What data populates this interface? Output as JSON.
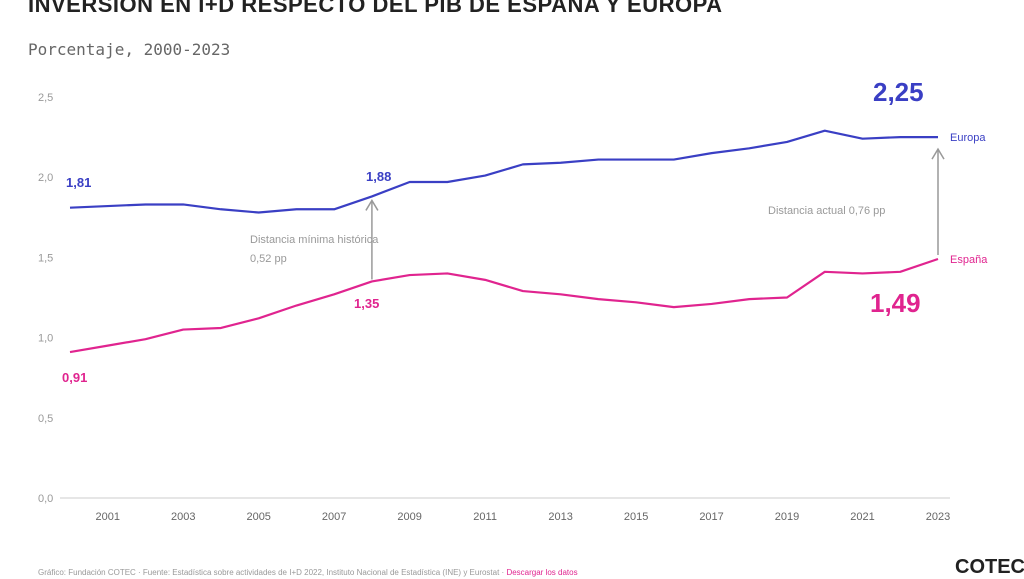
{
  "chart_data": {
    "type": "line",
    "title": "INVERSIÓN EN I+D RESPECTO DEL PIB DE ESPAÑA Y EUROPA",
    "subtitle": "Porcentaje, 2000-2023",
    "x": [
      2000,
      2001,
      2002,
      2003,
      2004,
      2005,
      2006,
      2007,
      2008,
      2009,
      2010,
      2011,
      2012,
      2013,
      2014,
      2015,
      2016,
      2017,
      2018,
      2019,
      2020,
      2021,
      2022,
      2023
    ],
    "xticks": [
      "2001",
      "2003",
      "2005",
      "2007",
      "2009",
      "2011",
      "2013",
      "2015",
      "2017",
      "2019",
      "2021",
      "2023"
    ],
    "yticks": [
      "0,0",
      "0,5",
      "1,0",
      "1,5",
      "2,0",
      "2,5"
    ],
    "ylim": [
      0,
      2.5
    ],
    "grid": false,
    "series": [
      {
        "name": "Europa",
        "color": "#3a3fc4",
        "values": [
          1.81,
          1.82,
          1.83,
          1.83,
          1.8,
          1.78,
          1.8,
          1.8,
          1.88,
          1.97,
          1.97,
          2.01,
          2.08,
          2.09,
          2.11,
          2.11,
          2.11,
          2.15,
          2.18,
          2.22,
          2.29,
          2.24,
          2.25,
          2.25
        ]
      },
      {
        "name": "España",
        "color": "#e0248f",
        "values": [
          0.91,
          0.95,
          0.99,
          1.05,
          1.06,
          1.12,
          1.2,
          1.27,
          1.35,
          1.39,
          1.4,
          1.36,
          1.29,
          1.27,
          1.24,
          1.22,
          1.19,
          1.21,
          1.24,
          1.25,
          1.41,
          1.4,
          1.41,
          1.49
        ]
      }
    ],
    "data_labels": {
      "europa_2000": "1,81",
      "europa_2008": "1,88",
      "europa_2023": "2,25",
      "espana_2000": "0,91",
      "espana_2008": "1,35",
      "espana_2023": "1,49"
    },
    "annotations": {
      "min_line1": "Distancia mínima histórica",
      "min_line2": "0,52 pp",
      "current": "Distancia actual 0,76 pp"
    }
  },
  "footer": {
    "source": "Gráfico: Fundación COTEC · Fuente: Estadística sobre actividades de I+D 2022, Instituto Nacional de Estadística (INE) y Eurostat · ",
    "link": "Descargar los datos",
    "logo": "COTEC"
  }
}
